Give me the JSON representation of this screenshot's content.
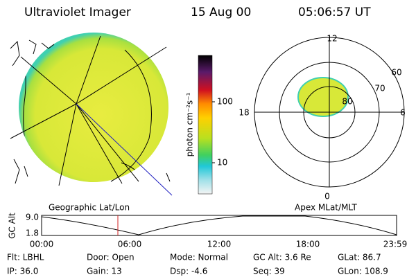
{
  "header": {
    "title": "Ultraviolet Imager",
    "date": "15 Aug 00",
    "time": "05:06:57 UT"
  },
  "colorbar": {
    "label": "photon cm⁻²s⁻¹",
    "ticks": [
      "100",
      "10"
    ]
  },
  "geo_panel": {
    "label": "Geographic Lat/Lon"
  },
  "polar_panel": {
    "label": "Apex MLat/MLT",
    "mlt_labels": [
      "12",
      "18",
      "6",
      "0"
    ],
    "lat_labels": [
      "60",
      "70",
      "80"
    ]
  },
  "altitude_plot": {
    "axis_label": "GC Alt",
    "y_labels": [
      "9.0",
      "1.8"
    ],
    "x_labels": [
      "00:00",
      "06:00",
      "12:00",
      "18:00",
      "23:59"
    ]
  },
  "status": {
    "rows": [
      [
        "Flt: LBHL",
        "Door: Open",
        "Mode: Normal",
        "GC Alt: 3.6 Re",
        "GLat: 86.7"
      ],
      [
        "IP: 36.0",
        "Gain: 13",
        "Dsp: -4.6",
        "Seq: 39",
        "GLon: 108.9"
      ]
    ]
  }
}
